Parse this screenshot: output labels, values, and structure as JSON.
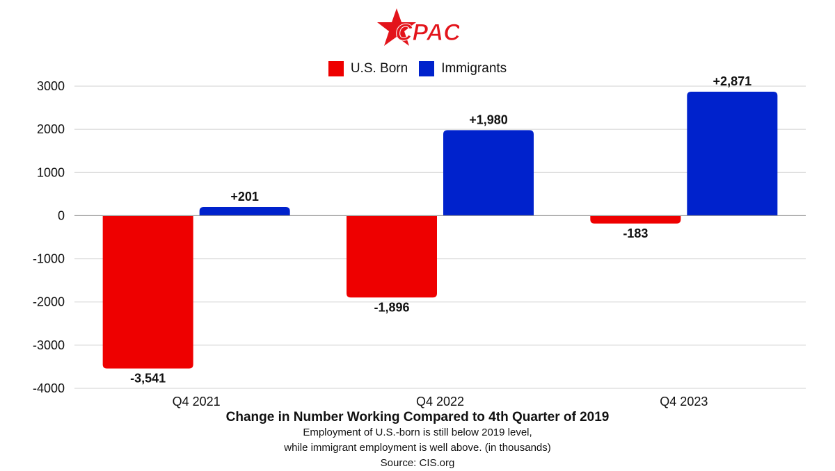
{
  "logo_text": "CPAC",
  "colors": {
    "us_born": "#ee0000",
    "immigrants": "#0022cc",
    "logo": "#e3141b",
    "grid": "#d0d0d0"
  },
  "chart_data": {
    "type": "bar",
    "categories": [
      "Q4 2021",
      "Q4 2022",
      "Q4 2023"
    ],
    "series": [
      {
        "name": "U.S. Born",
        "values": [
          -3541,
          -1896,
          -183
        ],
        "labels": [
          "-3,541",
          "-1,896",
          "-183"
        ]
      },
      {
        "name": "Immigrants",
        "values": [
          201,
          1980,
          2871
        ],
        "labels": [
          "+201",
          "+1,980",
          "+2,871"
        ]
      }
    ],
    "ylim": [
      -4000,
      3000
    ],
    "yticks": [
      3000,
      2000,
      1000,
      0,
      -1000,
      -2000,
      -3000,
      -4000
    ],
    "ytick_labels": [
      "3000",
      "2000",
      "1000",
      "0",
      "-1000",
      "-2000",
      "-3000",
      "-4000"
    ],
    "grid": true,
    "legend": "top-center",
    "title": "Change in Number Working Compared to 4th Quarter of 2019",
    "subtitle_lines": [
      "Employment of U.S.-born is still below 2019 level,",
      "while immigrant employment is well above. (in thousands)",
      "Source: CIS.org"
    ]
  }
}
